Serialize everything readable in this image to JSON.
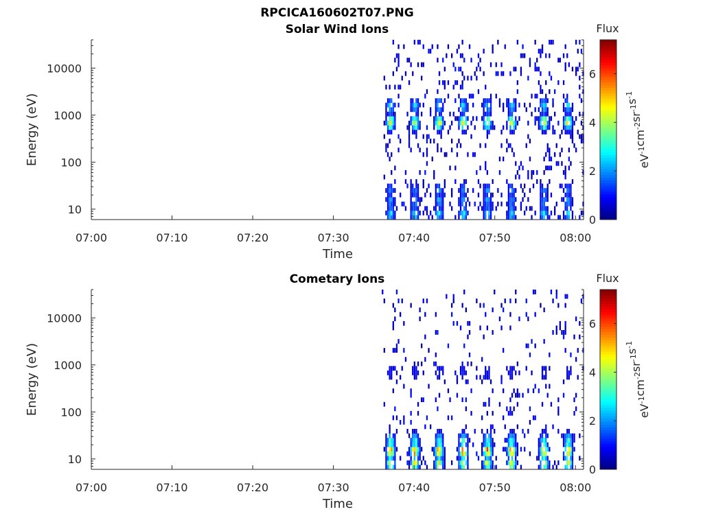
{
  "figure_title": "RPCICA160602T07.PNG",
  "chart_data": [
    {
      "type": "heatmap",
      "title": "Solar Wind Ions",
      "xlabel": "Time",
      "ylabel": "Energy (eV)",
      "y_scale": "log",
      "xlim": [
        "07:00",
        "08:01"
      ],
      "ylim": [
        6,
        40000
      ],
      "x_ticks": [
        "07:00",
        "07:10",
        "07:20",
        "07:30",
        "07:40",
        "07:50",
        "08:00"
      ],
      "y_ticks": [
        "10",
        "100",
        "1000",
        "10000"
      ],
      "data_start": "07:36",
      "colorbar": {
        "title": "Flux",
        "label": "eV-1cm-2sr-1s-1",
        "range": [
          0,
          7.4
        ],
        "ticks": [
          "0",
          "2",
          "4",
          "6"
        ]
      },
      "peak_times": [
        "07:37",
        "07:40",
        "07:43",
        "07:46",
        "07:49",
        "07:52",
        "07:56",
        "07:59"
      ],
      "bands": [
        {
          "energy_eV": 700,
          "level": 4.4,
          "description": "solar wind peak"
        },
        {
          "energy_eV": 1600,
          "level": 2.5
        },
        {
          "energy_eV": 25,
          "level": 1.8
        },
        {
          "energy_eV": 15,
          "level": 2.0
        },
        {
          "energy_eV": 8,
          "level": 2.6
        }
      ]
    },
    {
      "type": "heatmap",
      "title": "Cometary Ions",
      "xlabel": "Time",
      "ylabel": "Energy (eV)",
      "y_scale": "log",
      "xlim": [
        "07:00",
        "08:01"
      ],
      "ylim": [
        6,
        40000
      ],
      "x_ticks": [
        "07:00",
        "07:10",
        "07:20",
        "07:30",
        "07:40",
        "07:50",
        "08:00"
      ],
      "y_ticks": [
        "10",
        "100",
        "1000",
        "10000"
      ],
      "data_start": "07:36",
      "colorbar": {
        "title": "Flux",
        "label": "eV-1cm-2sr-1s-1",
        "range": [
          0,
          7.4
        ],
        "ticks": [
          "0",
          "2",
          "4",
          "6"
        ]
      },
      "peak_times": [
        "07:37",
        "07:40",
        "07:43",
        "07:46",
        "07:49",
        "07:52",
        "07:56",
        "07:59"
      ],
      "bands": [
        {
          "energy_eV": 700,
          "level": 1.0,
          "description": "faint high-energy band"
        },
        {
          "energy_eV": 15,
          "level": 5.5,
          "description": "cometary ion peak"
        },
        {
          "energy_eV": 8,
          "level": 4.5
        },
        {
          "energy_eV": 25,
          "level": 3.0
        }
      ]
    }
  ]
}
